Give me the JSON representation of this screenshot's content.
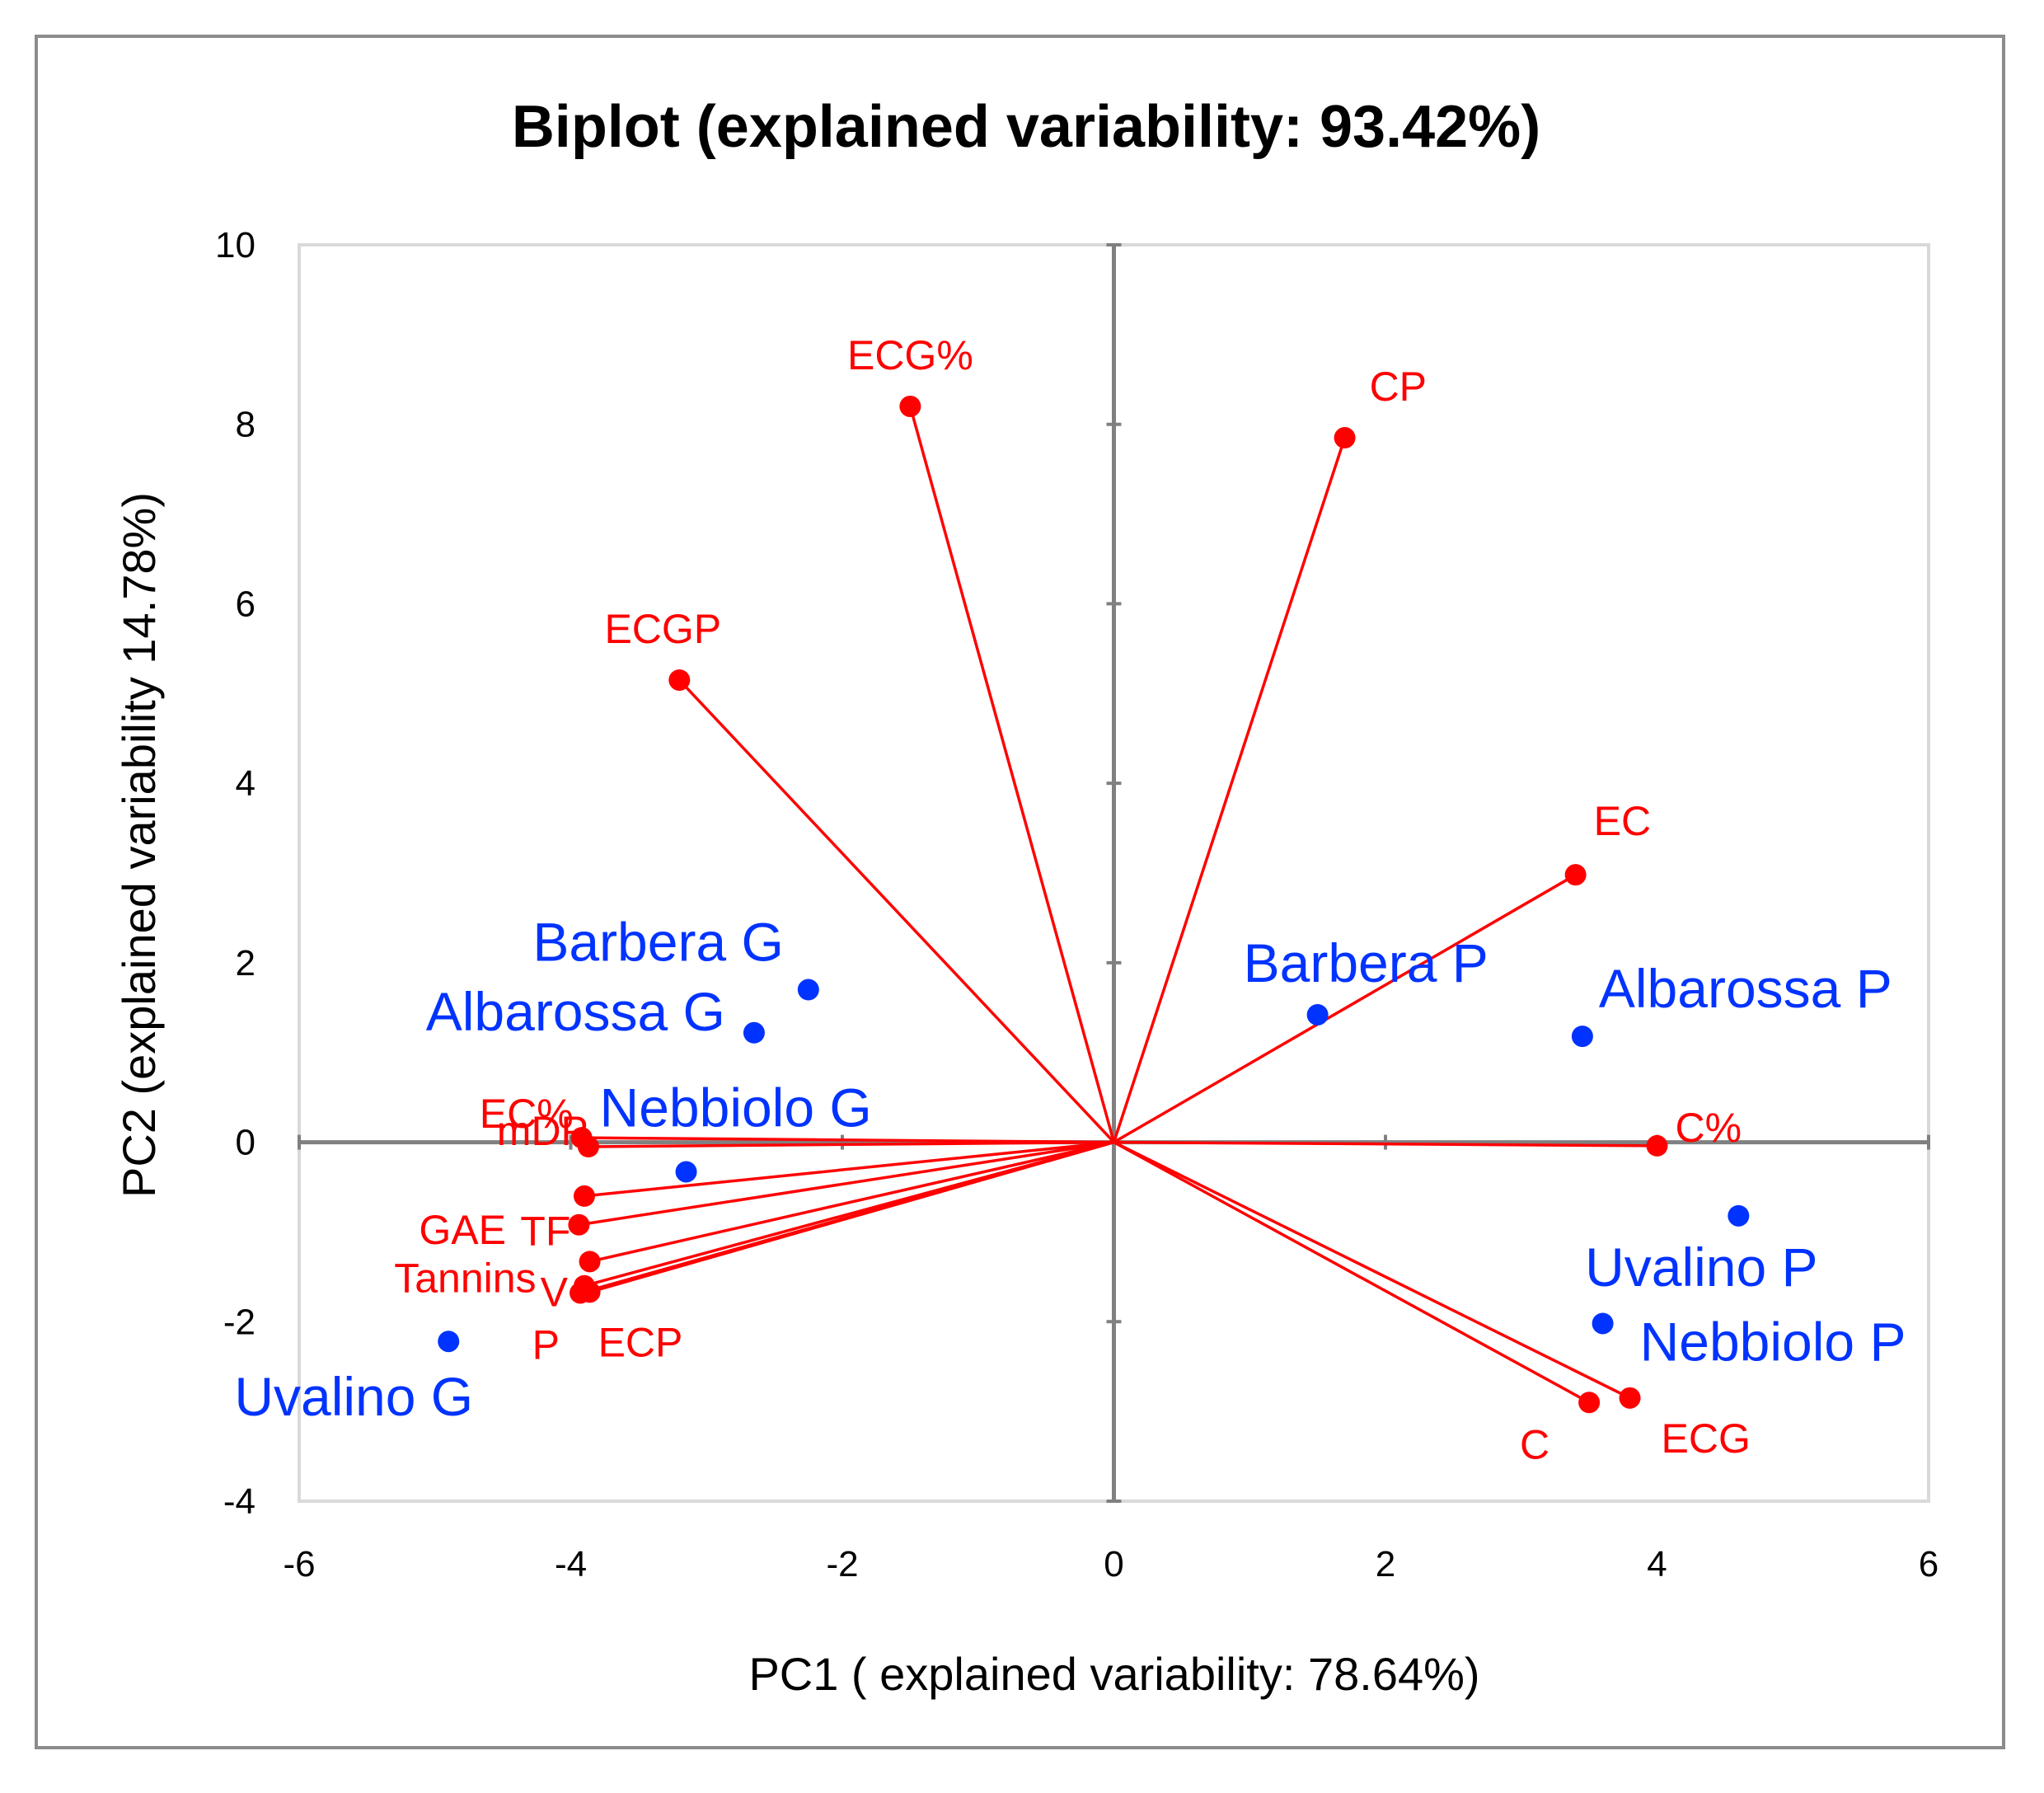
{
  "chart_data": {
    "type": "scatter",
    "subtype": "biplot",
    "title": "Biplot (explained variability: 93.42%)",
    "xlabel": "PC1 ( explained variability: 78.64%)",
    "ylabel": "PC2 (explained variability 14.78%)",
    "xlim": [
      -6,
      6
    ],
    "ylim": [
      -4,
      10
    ],
    "xticks": [
      -6,
      -4,
      -2,
      0,
      2,
      4,
      6
    ],
    "yticks": [
      -4,
      -2,
      0,
      2,
      4,
      6,
      8,
      10
    ],
    "grid": false,
    "colors": {
      "variables": "#ff0000",
      "observations": "#0033ff",
      "axes": "#808080",
      "plot_border": "#d9d9d9"
    },
    "variables": [
      {
        "name": "ECG%",
        "x": -1.5,
        "y": 8.2,
        "label_anchor": "middle"
      },
      {
        "name": "CP",
        "x": 1.7,
        "y": 7.85,
        "label_anchor": "start"
      },
      {
        "name": "ECGP",
        "x": -3.2,
        "y": 5.15,
        "label_anchor": "middle"
      },
      {
        "name": "EC",
        "x": 3.4,
        "y": 2.98,
        "label_anchor": "start"
      },
      {
        "name": "C%",
        "x": 4.0,
        "y": -0.04,
        "label_anchor": "start"
      },
      {
        "name": "C",
        "x": 3.5,
        "y": -2.9,
        "label_anchor": "end"
      },
      {
        "name": "ECG",
        "x": 3.8,
        "y": -2.85,
        "label_anchor": "start"
      },
      {
        "name": "EC%",
        "x": -3.92,
        "y": 0.05,
        "label_anchor": "end"
      },
      {
        "name": "mDP",
        "x": -3.87,
        "y": -0.05,
        "label_anchor": "end"
      },
      {
        "name": "GAE",
        "x": -3.9,
        "y": -0.6,
        "label_anchor": "end"
      },
      {
        "name": "TF",
        "x": -3.94,
        "y": -0.92,
        "label_anchor": "end"
      },
      {
        "name": "Tannins",
        "x": -3.86,
        "y": -1.33,
        "label_anchor": "end"
      },
      {
        "name": "V",
        "x": -3.9,
        "y": -1.6,
        "label_anchor": "end"
      },
      {
        "name": "P",
        "x": -3.93,
        "y": -1.68,
        "label_anchor": "end"
      },
      {
        "name": "ECP",
        "x": -3.86,
        "y": -1.67,
        "label_anchor": "start"
      }
    ],
    "observations": [
      {
        "name": "Barbera G",
        "x": -2.25,
        "y": 1.7
      },
      {
        "name": "Albarossa G",
        "x": -2.65,
        "y": 1.22
      },
      {
        "name": "Nebbiolo G",
        "x": -3.15,
        "y": -0.33
      },
      {
        "name": "Uvalino G",
        "x": -4.9,
        "y": -2.22
      },
      {
        "name": "Barbera P",
        "x": 1.5,
        "y": 1.42
      },
      {
        "name": "Albarossa P",
        "x": 3.45,
        "y": 1.18
      },
      {
        "name": "Uvalino P",
        "x": 4.6,
        "y": -0.82
      },
      {
        "name": "Nebbiolo P",
        "x": 3.6,
        "y": -2.02
      }
    ]
  }
}
